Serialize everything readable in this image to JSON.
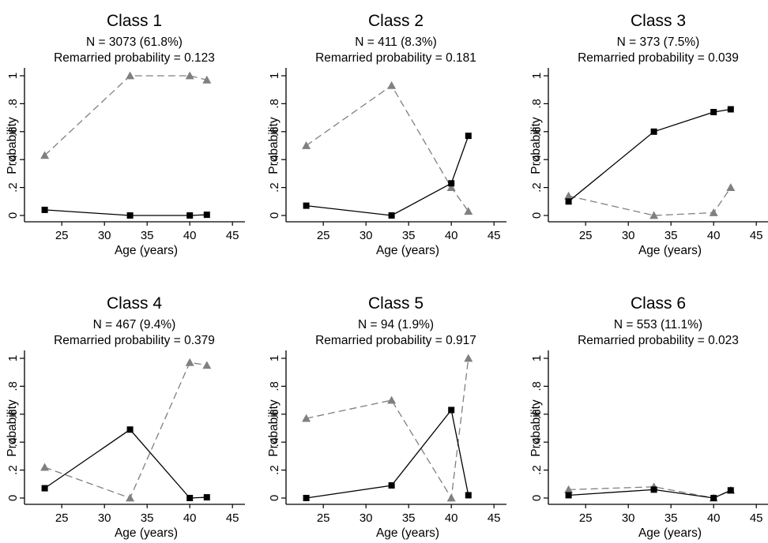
{
  "chart_data": [
    {
      "type": "line",
      "title": "Class 1",
      "subtitle1": "N = 3073 (61.8%)",
      "subtitle2": "Remarried probability = 0.123",
      "xlabel": "Age (years)",
      "ylabel": "Probability",
      "xlim": [
        21,
        46
      ],
      "ylim": [
        0,
        1
      ],
      "xticks": [
        "25",
        "30",
        "35",
        "40",
        "45"
      ],
      "yticks": [
        "0",
        ".2",
        ".4",
        ".6",
        ".8",
        "1"
      ],
      "x": [
        23,
        33,
        40,
        42
      ],
      "series": [
        {
          "marker": "square",
          "line": "solid",
          "color": "#000000",
          "values": [
            0.04,
            0.0,
            0.0,
            0.005
          ]
        },
        {
          "marker": "triangle",
          "line": "dashed",
          "color": "#808080",
          "values": [
            0.43,
            1.0,
            1.0,
            0.97
          ]
        }
      ]
    },
    {
      "type": "line",
      "title": "Class 2",
      "subtitle1": "N = 411 (8.3%)",
      "subtitle2": "Remarried probability = 0.181",
      "xlabel": "Age (years)",
      "ylabel": "Probability",
      "xlim": [
        21,
        46
      ],
      "ylim": [
        0,
        1
      ],
      "xticks": [
        "25",
        "30",
        "35",
        "40",
        "45"
      ],
      "yticks": [
        "0",
        ".2",
        ".4",
        ".6",
        ".8",
        "1"
      ],
      "x": [
        23,
        33,
        40,
        42
      ],
      "series": [
        {
          "marker": "square",
          "line": "solid",
          "color": "#000000",
          "values": [
            0.07,
            0.0,
            0.23,
            0.57
          ]
        },
        {
          "marker": "triangle",
          "line": "dashed",
          "color": "#808080",
          "values": [
            0.5,
            0.93,
            0.2,
            0.03
          ]
        }
      ]
    },
    {
      "type": "line",
      "title": "Class 3",
      "subtitle1": "N = 373 (7.5%)",
      "subtitle2": "Remarried probability = 0.039",
      "xlabel": "Age (years)",
      "ylabel": "Probability",
      "xlim": [
        21,
        46
      ],
      "ylim": [
        0,
        1
      ],
      "xticks": [
        "25",
        "30",
        "35",
        "40",
        "45"
      ],
      "yticks": [
        "0",
        ".2",
        ".4",
        ".6",
        ".8",
        "1"
      ],
      "x": [
        23,
        33,
        40,
        42
      ],
      "series": [
        {
          "marker": "square",
          "line": "solid",
          "color": "#000000",
          "values": [
            0.1,
            0.6,
            0.74,
            0.76
          ]
        },
        {
          "marker": "triangle",
          "line": "dashed",
          "color": "#808080",
          "values": [
            0.14,
            0.0,
            0.02,
            0.2
          ]
        }
      ]
    },
    {
      "type": "line",
      "title": "Class 4",
      "subtitle1": "N = 467 (9.4%)",
      "subtitle2": "Remarried probability = 0.379",
      "xlabel": "Age (years)",
      "ylabel": "Probability",
      "xlim": [
        21,
        46
      ],
      "ylim": [
        0,
        1
      ],
      "xticks": [
        "25",
        "30",
        "35",
        "40",
        "45"
      ],
      "yticks": [
        "0",
        ".2",
        ".4",
        ".6",
        ".8",
        "1"
      ],
      "x": [
        23,
        33,
        40,
        42
      ],
      "series": [
        {
          "marker": "square",
          "line": "solid",
          "color": "#000000",
          "values": [
            0.07,
            0.49,
            0.0,
            0.005
          ]
        },
        {
          "marker": "triangle",
          "line": "dashed",
          "color": "#808080",
          "values": [
            0.22,
            0.0,
            0.97,
            0.95
          ]
        }
      ]
    },
    {
      "type": "line",
      "title": "Class 5",
      "subtitle1": "N = 94 (1.9%)",
      "subtitle2": "Remarried probability = 0.917",
      "xlabel": "Age (years)",
      "ylabel": "Probability",
      "xlim": [
        21,
        46
      ],
      "ylim": [
        0,
        1
      ],
      "xticks": [
        "25",
        "30",
        "35",
        "40",
        "45"
      ],
      "yticks": [
        "0",
        ".2",
        ".4",
        ".6",
        ".8",
        "1"
      ],
      "x": [
        23,
        33,
        40,
        42
      ],
      "series": [
        {
          "marker": "square",
          "line": "solid",
          "color": "#000000",
          "values": [
            0.0,
            0.09,
            0.63,
            0.02
          ]
        },
        {
          "marker": "triangle",
          "line": "dashed",
          "color": "#808080",
          "values": [
            0.57,
            0.7,
            0.0,
            1.0
          ]
        }
      ]
    },
    {
      "type": "line",
      "title": "Class 6",
      "subtitle1": "N = 553 (11.1%)",
      "subtitle2": "Remarried probability = 0.023",
      "xlabel": "Age (years)",
      "ylabel": "Probability",
      "xlim": [
        21,
        46
      ],
      "ylim": [
        0,
        1
      ],
      "xticks": [
        "25",
        "30",
        "35",
        "40",
        "45"
      ],
      "yticks": [
        "0",
        ".2",
        ".4",
        ".6",
        ".8",
        "1"
      ],
      "x": [
        23,
        33,
        40,
        42
      ],
      "series": [
        {
          "marker": "square",
          "line": "solid",
          "color": "#000000",
          "values": [
            0.02,
            0.06,
            0.0,
            0.055
          ]
        },
        {
          "marker": "triangle",
          "line": "dashed",
          "color": "#808080",
          "values": [
            0.06,
            0.08,
            0.0,
            0.055
          ]
        }
      ]
    }
  ]
}
